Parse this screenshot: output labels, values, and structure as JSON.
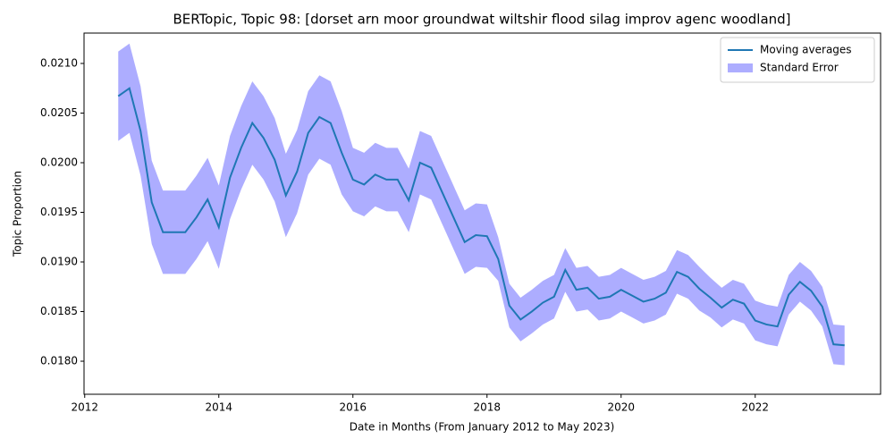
{
  "chart_data": {
    "type": "line",
    "title": "BERTopic, Topic 98: [dorset arn moor groundwat wiltshir flood silag improv agenc woodland]",
    "x_label": "Date in Months (From January 2012 to May 2023)",
    "y_label": "Topic Proportion",
    "x": [
      2012.5,
      2012.667,
      2012.833,
      2013,
      2013.167,
      2013.333,
      2013.5,
      2013.667,
      2013.833,
      2014,
      2014.167,
      2014.333,
      2014.5,
      2014.667,
      2014.833,
      2015,
      2015.167,
      2015.333,
      2015.5,
      2015.667,
      2015.833,
      2016,
      2016.167,
      2016.333,
      2016.5,
      2016.667,
      2016.833,
      2017,
      2017.167,
      2017.333,
      2017.5,
      2017.667,
      2017.833,
      2018,
      2018.167,
      2018.333,
      2018.5,
      2018.667,
      2018.833,
      2019,
      2019.167,
      2019.333,
      2019.5,
      2019.667,
      2019.833,
      2020,
      2020.167,
      2020.333,
      2020.5,
      2020.667,
      2020.833,
      2021,
      2021.167,
      2021.333,
      2021.5,
      2021.667,
      2021.833,
      2022,
      2022.167,
      2022.333,
      2022.5,
      2022.667,
      2022.833,
      2023,
      2023.167,
      2023.333
    ],
    "series": [
      {
        "name": "Moving averages",
        "color": "#1f77b4",
        "values": [
          0.02067,
          0.02075,
          0.02032,
          0.0196,
          0.0193,
          0.0193,
          0.0193,
          0.01945,
          0.01963,
          0.01935,
          0.01985,
          0.02015,
          0.0204,
          0.02025,
          0.02003,
          0.01967,
          0.01991,
          0.0203,
          0.02046,
          0.0204,
          0.0201,
          0.01983,
          0.01978,
          0.01988,
          0.01983,
          0.01983,
          0.01962,
          0.02,
          0.01995,
          0.0197,
          0.01945,
          0.0192,
          0.01927,
          0.01926,
          0.01903,
          0.01856,
          0.01842,
          0.0185,
          0.01859,
          0.01865,
          0.01892,
          0.01872,
          0.01874,
          0.01863,
          0.01865,
          0.01872,
          0.01866,
          0.0186,
          0.01863,
          0.01869,
          0.0189,
          0.01885,
          0.01873,
          0.01864,
          0.01854,
          0.01862,
          0.01858,
          0.01841,
          0.01837,
          0.01835,
          0.01867,
          0.0188,
          0.01871,
          0.01855,
          0.01817,
          0.01816
        ],
        "errors": [
          0.00045,
          0.00045,
          0.00045,
          0.00042,
          0.00042,
          0.00042,
          0.00042,
          0.00042,
          0.00042,
          0.00042,
          0.00042,
          0.00042,
          0.00042,
          0.00042,
          0.00042,
          0.00042,
          0.00042,
          0.00042,
          0.00042,
          0.00042,
          0.00042,
          0.00032,
          0.00032,
          0.00032,
          0.00032,
          0.00032,
          0.00032,
          0.00032,
          0.00032,
          0.00032,
          0.00032,
          0.00032,
          0.00032,
          0.00032,
          0.00022,
          0.00022,
          0.00022,
          0.00022,
          0.00022,
          0.00022,
          0.00022,
          0.00022,
          0.00022,
          0.00022,
          0.00022,
          0.00022,
          0.00022,
          0.00022,
          0.00022,
          0.00022,
          0.00022,
          0.00022,
          0.00022,
          0.0002,
          0.0002,
          0.0002,
          0.0002,
          0.0002,
          0.0002,
          0.0002,
          0.0002,
          0.0002,
          0.0002,
          0.0002,
          0.0002,
          0.0002
        ]
      }
    ],
    "error_band": {
      "name": "Standard Error",
      "color": "#0000ff"
    },
    "xlim": [
      2011.99,
      2023.87
    ],
    "ylim": [
      0.017667,
      0.021306
    ],
    "xticks": [
      2012,
      2014,
      2016,
      2018,
      2020,
      2022
    ],
    "yticks": [
      {
        "value": 0.018,
        "label": "0.0180"
      },
      {
        "value": 0.0185,
        "label": "0.0185"
      },
      {
        "value": 0.019,
        "label": "0.0190"
      },
      {
        "value": 0.0195,
        "label": "0.0195"
      },
      {
        "value": 0.02,
        "label": "0.0200"
      },
      {
        "value": 0.0205,
        "label": "0.0205"
      },
      {
        "value": 0.021,
        "label": "0.0210"
      }
    ],
    "legend": "upper right",
    "grid": false
  }
}
